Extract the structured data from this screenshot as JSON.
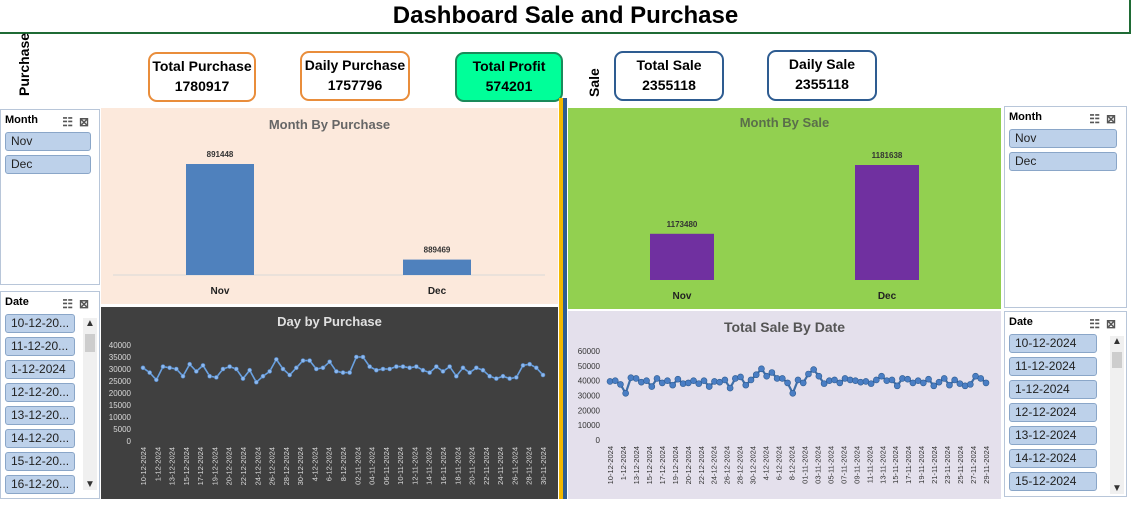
{
  "title": "Dashboard Sale and Purchase",
  "side_labels": {
    "purchase": "Purchase",
    "sale": "Sale"
  },
  "kpis": {
    "total_purchase": {
      "label": "Total Purchase",
      "value": "1780917"
    },
    "daily_purchase": {
      "label": "Daily Purchase",
      "value": "1757796"
    },
    "total_profit": {
      "label": "Total Profit",
      "value": "574201"
    },
    "total_sale": {
      "label": "Total Sale",
      "value": "2355118"
    },
    "daily_sale": {
      "label": "Daily Sale",
      "value": "2355118"
    }
  },
  "slicers": {
    "purchase_month": {
      "header": "Month",
      "items": [
        "Nov",
        "Dec"
      ]
    },
    "purchase_date": {
      "header": "Date",
      "items": [
        "10-12-20...",
        "11-12-20...",
        "1-12-2024",
        "12-12-20...",
        "13-12-20...",
        "14-12-20...",
        "15-12-20...",
        "16-12-20..."
      ]
    },
    "sale_month": {
      "header": "Month",
      "items": [
        "Nov",
        "Dec"
      ]
    },
    "sale_date": {
      "header": "Date",
      "items": [
        "10-12-2024",
        "11-12-2024",
        "1-12-2024",
        "12-12-2024",
        "13-12-2024",
        "14-12-2024",
        "15-12-2024"
      ]
    }
  },
  "colors": {
    "purchase_bar": "#4f81bd",
    "sale_bar": "#7030a0",
    "profit_kpi": "#00ff99",
    "purchase_kpi_border": "#e98d3b",
    "sale_kpi_border": "#2e5c91"
  },
  "chart_data": [
    {
      "id": "month_by_purchase",
      "type": "bar",
      "title": "Month By Purchase",
      "categories": [
        "Nov",
        "Dec"
      ],
      "values": [
        891448,
        889469
      ],
      "data_labels": [
        "891448",
        "889469"
      ]
    },
    {
      "id": "month_by_sale",
      "type": "bar",
      "title": "Month By Sale",
      "categories": [
        "Nov",
        "Dec"
      ],
      "values": [
        1173480,
        1181638
      ],
      "data_labels": [
        "1173480",
        "1181638"
      ]
    },
    {
      "id": "day_by_purchase",
      "type": "line",
      "title": "Day by Purchase",
      "ylim": [
        0,
        40000
      ],
      "yticks": [
        "0",
        "5000",
        "10000",
        "15000",
        "20000",
        "25000",
        "30000",
        "35000",
        "40000"
      ],
      "xticks": [
        "10-12-2024",
        "1-12-2024",
        "13-12-2024",
        "15-12-2024",
        "17-12-2024",
        "19-12-2024",
        "20-12-2024",
        "22-12-2024",
        "24-12-2024",
        "26-12-2024",
        "28-12-2024",
        "30-12-2024",
        "4-12-2024",
        "6-12-2024",
        "8-12-2024",
        "02-11-2024",
        "04-11-2024",
        "06-11-2024",
        "10-11-2024",
        "12-11-2024",
        "14-11-2024",
        "16-11-2024",
        "18-11-2024",
        "20-11-2024",
        "22-11-2024",
        "24-11-2024",
        "26-11-2024",
        "28-11-2024",
        "30-11-2024"
      ],
      "values": [
        30500,
        28500,
        25500,
        31000,
        30500,
        30000,
        27000,
        32000,
        29000,
        31500,
        27000,
        26500,
        30000,
        31000,
        30000,
        26000,
        29500,
        24500,
        27000,
        29000,
        34000,
        30000,
        27500,
        30500,
        33500,
        33500,
        30000,
        30500,
        33000,
        29000,
        28500,
        28500,
        35000,
        35000,
        31000,
        29500,
        30000,
        30000,
        31000,
        31000,
        30500,
        31000,
        29500,
        28500,
        31000,
        29000,
        31000,
        27000,
        30500,
        28500,
        30500,
        29500,
        27000,
        26000,
        27000,
        26000,
        26500,
        31500,
        32000,
        30500,
        27500
      ]
    },
    {
      "id": "total_sale_by_date",
      "type": "line",
      "title": "Total Sale By Date",
      "ylim": [
        0,
        60000
      ],
      "yticks": [
        "0",
        "10000",
        "20000",
        "30000",
        "40000",
        "50000",
        "60000"
      ],
      "xticks": [
        "10-12-2024",
        "1-12-2024",
        "13-12-2024",
        "15-12-2024",
        "17-12-2024",
        "19-12-2024",
        "20-12-2024",
        "22-12-2024",
        "24-12-2024",
        "26-12-2024",
        "28-12-2024",
        "30-12-2024",
        "4-12-2024",
        "6-12-2024",
        "8-12-2024",
        "01-11-2024",
        "03-11-2024",
        "05-11-2024",
        "07-11-2024",
        "09-11-2024",
        "11-11-2024",
        "13-11-2024",
        "15-11-2024",
        "17-11-2024",
        "19-11-2024",
        "21-11-2024",
        "23-11-2024",
        "25-11-2024",
        "27-11-2024",
        "29-11-2024"
      ],
      "values": [
        39500,
        40000,
        37500,
        31500,
        42000,
        41500,
        39000,
        40000,
        36000,
        41500,
        38500,
        40000,
        37000,
        41000,
        38000,
        38500,
        40000,
        38000,
        40000,
        36000,
        39500,
        39000,
        40500,
        35000,
        41500,
        42500,
        37000,
        40500,
        44000,
        48000,
        43000,
        45500,
        41500,
        41500,
        38500,
        31500,
        40500,
        38500,
        44500,
        47500,
        43000,
        38000,
        40000,
        40500,
        38500,
        41500,
        40500,
        40000,
        39000,
        39500,
        38000,
        40500,
        43000,
        40000,
        40500,
        36500,
        41500,
        41000,
        38500,
        40000,
        38500,
        41000,
        36500,
        39000,
        41500,
        37000,
        40500,
        38000,
        36500,
        37500,
        43000,
        41500,
        38500
      ]
    }
  ]
}
